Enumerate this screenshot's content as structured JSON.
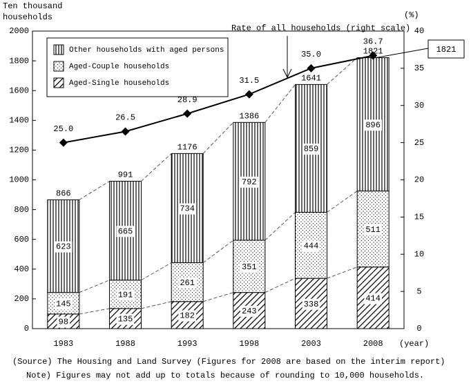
{
  "chart_data": {
    "type": "bar",
    "stacked": true,
    "ylabel": [
      "Ten thousand",
      "households"
    ],
    "y2label": "(%)",
    "xlabel": "(year)",
    "categories": [
      "1983",
      "1988",
      "1993",
      "1998",
      "2003",
      "2008"
    ],
    "series": [
      {
        "name": "Other households with aged persons",
        "pattern": "vertical",
        "values": [
          623,
          665,
          734,
          792,
          859,
          896
        ]
      },
      {
        "name": "Aged-Couple households",
        "pattern": "dots",
        "values": [
          145,
          191,
          261,
          351,
          444,
          511
        ]
      },
      {
        "name": "Aged-Single households",
        "pattern": "diagonal",
        "values": [
          98,
          135,
          182,
          243,
          338,
          414
        ]
      }
    ],
    "totals": [
      866,
      991,
      1176,
      1386,
      1641,
      1821
    ],
    "line": {
      "name": "Rate of all households (right scale)",
      "axis": "y2",
      "color": "#000000",
      "values": [
        25,
        26.5,
        28.9,
        31.5,
        35,
        36.7
      ],
      "value_labels": [
        "25.0",
        "26.5",
        "28.9",
        "31.5",
        "35.0",
        "36.7"
      ]
    },
    "ylim": [
      0,
      2000
    ],
    "yticks": [
      0,
      200,
      400,
      600,
      800,
      1000,
      1200,
      1400,
      1600,
      1800,
      2000
    ],
    "y2lim": [
      0,
      40
    ],
    "y2ticks": [
      0,
      5,
      10,
      15,
      20,
      25,
      30,
      35,
      40
    ],
    "source": "(Source) The Housing and Land Survey (Figures for 2008 are based on the interim report)",
    "note": "Note) Figures may not add up to totals because of rounding to 10,000 households."
  }
}
